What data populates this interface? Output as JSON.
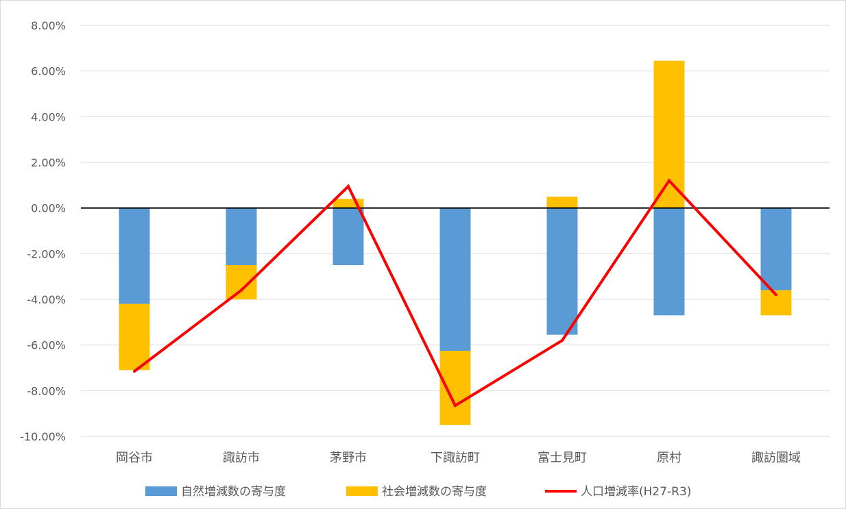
{
  "chart_data": {
    "type": "bar",
    "stacked": true,
    "categories": [
      "岡谷市",
      "諏訪市",
      "茅野市",
      "下諏訪町",
      "富士見町",
      "原村",
      "諏訪圏域"
    ],
    "series": [
      {
        "name": "自然増減数の寄与度",
        "kind": "bar",
        "color": "#5b9bd5",
        "values": [
          -4.2,
          -2.5,
          -2.5,
          -6.25,
          -5.55,
          -4.7,
          -3.6
        ]
      },
      {
        "name": "社会増減数の寄与度",
        "kind": "bar",
        "color": "#ffc000",
        "values": [
          -2.9,
          -1.5,
          0.4,
          -3.25,
          0.5,
          6.45,
          -1.1
        ]
      },
      {
        "name": "人口増減率(H27-R3)",
        "kind": "line",
        "color": "#ff0000",
        "values": [
          -7.15,
          -3.6,
          0.95,
          -8.65,
          -5.8,
          1.2,
          -3.8
        ]
      }
    ],
    "ylim": [
      -10,
      8
    ],
    "yticks": [
      8,
      6,
      4,
      2,
      0,
      -2,
      -4,
      -6,
      -8,
      -10
    ],
    "ytick_labels": [
      "8.00%",
      "6.00%",
      "4.00%",
      "2.00%",
      "0.00%",
      "-2.00%",
      "-4.00%",
      "-6.00%",
      "-8.00%",
      "-10.00%"
    ],
    "grid": true,
    "legend_position": "bottom",
    "title": "",
    "xlabel": "",
    "ylabel": ""
  }
}
